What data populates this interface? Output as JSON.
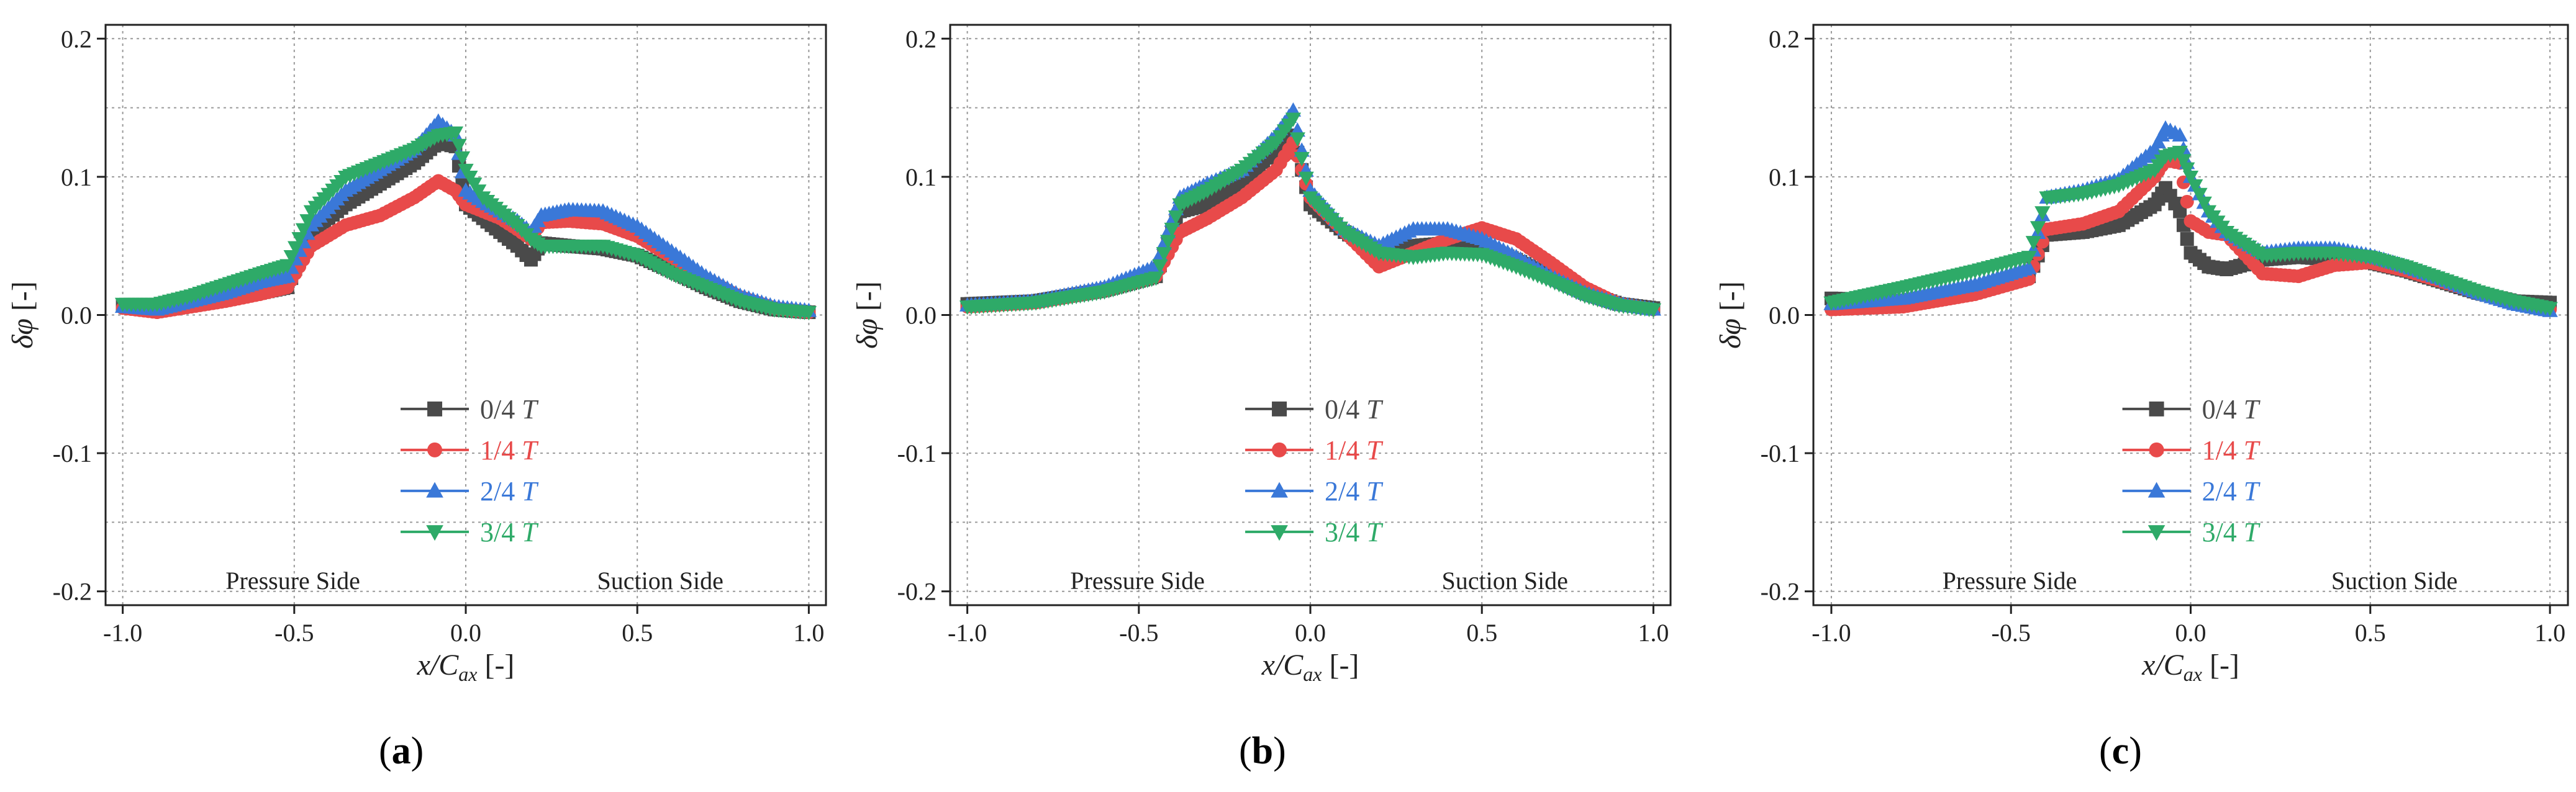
{
  "figure": {
    "panel_labels": [
      {
        "open": "(",
        "letter": "a",
        "close": ")"
      },
      {
        "open": "(",
        "letter": "b",
        "close": ")"
      },
      {
        "open": "(",
        "letter": "c",
        "close": ")"
      }
    ]
  },
  "chart_data": [
    {
      "type": "scatter",
      "panel": "a",
      "title": "",
      "xlabel": "x/C_ax [-]",
      "ylabel": "δφ [-]",
      "xlim": [
        -1.05,
        1.05
      ],
      "ylim": [
        -0.21,
        0.21
      ],
      "xticks": [
        "-1.0",
        "-0.5",
        "0.0",
        "0.5",
        "1.0"
      ],
      "yticks": [
        "-0.2",
        "-0.1",
        "0.0",
        "0.1",
        "0.2"
      ],
      "grid": true,
      "legend_position": "lower-center",
      "annotations": [
        "Pressure Side",
        "Suction Side"
      ],
      "colors": {
        "0/4 T": "#4a4a4a",
        "1/4 T": "#e84a4a",
        "2/4 T": "#3a78d8",
        "3/4 T": "#2eaa68"
      },
      "series": [
        {
          "name": "0/4 T",
          "label": "0/4",
          "label_italic": "T",
          "marker": "square",
          "x": [
            -1.0,
            -0.9,
            -0.8,
            -0.7,
            -0.6,
            -0.52,
            -0.45,
            -0.35,
            -0.25,
            -0.15,
            -0.08,
            -0.03,
            0.0,
            0.05,
            0.1,
            0.15,
            0.19,
            0.22,
            0.3,
            0.4,
            0.5,
            0.6,
            0.7,
            0.8,
            0.9,
            1.0
          ],
          "y": [
            0.007,
            0.004,
            0.008,
            0.012,
            0.016,
            0.02,
            0.06,
            0.08,
            0.095,
            0.11,
            0.125,
            0.122,
            0.08,
            0.07,
            0.06,
            0.05,
            0.04,
            0.052,
            0.05,
            0.048,
            0.043,
            0.032,
            0.02,
            0.01,
            0.004,
            0.002
          ]
        },
        {
          "name": "1/4 T",
          "label": "1/4",
          "label_italic": "T",
          "marker": "circle",
          "x": [
            -1.0,
            -0.9,
            -0.8,
            -0.7,
            -0.6,
            -0.52,
            -0.45,
            -0.35,
            -0.25,
            -0.15,
            -0.08,
            -0.03,
            0.0,
            0.05,
            0.1,
            0.15,
            0.19,
            0.22,
            0.3,
            0.4,
            0.5,
            0.6,
            0.7,
            0.8,
            0.9,
            1.0
          ],
          "y": [
            0.005,
            0.002,
            0.006,
            0.01,
            0.015,
            0.02,
            0.05,
            0.065,
            0.072,
            0.085,
            0.097,
            0.09,
            0.08,
            0.075,
            0.07,
            0.062,
            0.055,
            0.067,
            0.068,
            0.066,
            0.057,
            0.042,
            0.026,
            0.013,
            0.005,
            0.002
          ]
        },
        {
          "name": "2/4 T",
          "label": "2/4",
          "label_italic": "T",
          "marker": "triangle-up",
          "x": [
            -1.0,
            -0.9,
            -0.8,
            -0.7,
            -0.6,
            -0.52,
            -0.45,
            -0.35,
            -0.25,
            -0.15,
            -0.08,
            -0.03,
            0.0,
            0.05,
            0.1,
            0.15,
            0.19,
            0.22,
            0.3,
            0.4,
            0.5,
            0.6,
            0.7,
            0.8,
            0.9,
            1.0
          ],
          "y": [
            0.006,
            0.004,
            0.01,
            0.016,
            0.024,
            0.028,
            0.065,
            0.09,
            0.105,
            0.12,
            0.14,
            0.13,
            0.09,
            0.082,
            0.075,
            0.068,
            0.06,
            0.072,
            0.076,
            0.075,
            0.064,
            0.046,
            0.028,
            0.014,
            0.006,
            0.003
          ]
        },
        {
          "name": "3/4 T",
          "label": "3/4",
          "label_italic": "T",
          "marker": "triangle-down",
          "x": [
            -1.0,
            -0.9,
            -0.8,
            -0.7,
            -0.6,
            -0.52,
            -0.45,
            -0.35,
            -0.25,
            -0.15,
            -0.08,
            -0.03,
            0.0,
            0.05,
            0.1,
            0.15,
            0.19,
            0.22,
            0.3,
            0.4,
            0.5,
            0.6,
            0.7,
            0.8,
            0.9,
            1.0
          ],
          "y": [
            0.008,
            0.008,
            0.014,
            0.022,
            0.03,
            0.036,
            0.075,
            0.1,
            0.11,
            0.12,
            0.13,
            0.132,
            0.105,
            0.085,
            0.075,
            0.065,
            0.055,
            0.05,
            0.05,
            0.05,
            0.043,
            0.03,
            0.02,
            0.01,
            0.004,
            0.002
          ]
        }
      ]
    },
    {
      "type": "scatter",
      "panel": "b",
      "title": "",
      "xlabel": "x/C_ax [-]",
      "ylabel": "δφ [-]",
      "xlim": [
        -1.05,
        1.05
      ],
      "ylim": [
        -0.21,
        0.21
      ],
      "xticks": [
        "-1.0",
        "-0.5",
        "0.0",
        "0.5",
        "1.0"
      ],
      "yticks": [
        "-0.2",
        "-0.1",
        "0.0",
        "0.1",
        "0.2"
      ],
      "grid": true,
      "legend_position": "lower-center",
      "annotations": [
        "Pressure Side",
        "Suction Side"
      ],
      "colors": {
        "0/4 T": "#4a4a4a",
        "1/4 T": "#e84a4a",
        "2/4 T": "#3a78d8",
        "3/4 T": "#2eaa68"
      },
      "series": [
        {
          "name": "0/4 T",
          "label": "0/4",
          "label_italic": "T",
          "marker": "square",
          "x": [
            -1.0,
            -0.8,
            -0.6,
            -0.45,
            -0.38,
            -0.3,
            -0.2,
            -0.1,
            -0.05,
            0.0,
            0.1,
            0.2,
            0.3,
            0.4,
            0.5,
            0.6,
            0.7,
            0.8,
            0.9,
            1.0
          ],
          "y": [
            0.008,
            0.01,
            0.018,
            0.028,
            0.075,
            0.08,
            0.095,
            0.12,
            0.13,
            0.08,
            0.06,
            0.045,
            0.05,
            0.052,
            0.05,
            0.04,
            0.028,
            0.016,
            0.008,
            0.005
          ]
        },
        {
          "name": "1/4 T",
          "label": "1/4",
          "label_italic": "T",
          "marker": "circle",
          "x": [
            -1.0,
            -0.8,
            -0.6,
            -0.45,
            -0.38,
            -0.3,
            -0.2,
            -0.1,
            -0.05,
            0.0,
            0.1,
            0.2,
            0.3,
            0.4,
            0.5,
            0.6,
            0.7,
            0.8,
            0.9,
            1.0
          ],
          "y": [
            0.006,
            0.009,
            0.018,
            0.028,
            0.06,
            0.07,
            0.085,
            0.105,
            0.125,
            0.085,
            0.06,
            0.035,
            0.045,
            0.055,
            0.063,
            0.055,
            0.038,
            0.02,
            0.008,
            0.004
          ]
        },
        {
          "name": "2/4 T",
          "label": "2/4",
          "label_italic": "T",
          "marker": "triangle-up",
          "x": [
            -1.0,
            -0.8,
            -0.6,
            -0.45,
            -0.38,
            -0.3,
            -0.2,
            -0.1,
            -0.05,
            0.0,
            0.1,
            0.2,
            0.3,
            0.4,
            0.5,
            0.6,
            0.7,
            0.8,
            0.9,
            1.0
          ],
          "y": [
            0.007,
            0.01,
            0.02,
            0.035,
            0.085,
            0.095,
            0.105,
            0.13,
            0.148,
            0.09,
            0.062,
            0.05,
            0.062,
            0.062,
            0.055,
            0.042,
            0.028,
            0.016,
            0.008,
            0.004
          ]
        },
        {
          "name": "3/4 T",
          "label": "3/4",
          "label_italic": "T",
          "marker": "triangle-down",
          "x": [
            -1.0,
            -0.8,
            -0.6,
            -0.45,
            -0.38,
            -0.3,
            -0.2,
            -0.1,
            -0.05,
            0.0,
            0.1,
            0.2,
            0.3,
            0.4,
            0.5,
            0.6,
            0.7,
            0.8,
            0.9,
            1.0
          ],
          "y": [
            0.006,
            0.009,
            0.017,
            0.027,
            0.08,
            0.09,
            0.105,
            0.125,
            0.142,
            0.085,
            0.06,
            0.045,
            0.042,
            0.045,
            0.044,
            0.035,
            0.025,
            0.014,
            0.007,
            0.004
          ]
        }
      ]
    },
    {
      "type": "scatter",
      "panel": "c",
      "title": "",
      "xlabel": "x/C_ax [-]",
      "ylabel": "δφ [-]",
      "xlim": [
        -1.05,
        1.05
      ],
      "ylim": [
        -0.21,
        0.21
      ],
      "xticks": [
        "-1.0",
        "-0.5",
        "0.0",
        "0.5",
        "1.0"
      ],
      "yticks": [
        "-0.2",
        "-0.1",
        "0.0",
        "0.1",
        "0.2"
      ],
      "grid": true,
      "legend_position": "lower-center",
      "annotations": [
        "Pressure Side",
        "Suction Side"
      ],
      "colors": {
        "0/4 T": "#4a4a4a",
        "1/4 T": "#e84a4a",
        "2/4 T": "#3a78d8",
        "3/4 T": "#2eaa68"
      },
      "series": [
        {
          "name": "0/4 T",
          "label": "0/4",
          "label_italic": "T",
          "marker": "square",
          "x": [
            -1.0,
            -0.8,
            -0.6,
            -0.45,
            -0.4,
            -0.3,
            -0.2,
            -0.1,
            -0.07,
            -0.03,
            0.0,
            0.05,
            0.1,
            0.2,
            0.3,
            0.4,
            0.5,
            0.6,
            0.7,
            0.8,
            0.9,
            1.0
          ],
          "y": [
            0.012,
            0.01,
            0.018,
            0.028,
            0.058,
            0.06,
            0.065,
            0.08,
            0.092,
            0.075,
            0.045,
            0.035,
            0.033,
            0.04,
            0.042,
            0.04,
            0.038,
            0.032,
            0.024,
            0.016,
            0.01,
            0.009
          ]
        },
        {
          "name": "1/4 T",
          "label": "1/4",
          "label_italic": "T",
          "marker": "circle",
          "x": [
            -1.0,
            -0.8,
            -0.6,
            -0.45,
            -0.4,
            -0.3,
            -0.2,
            -0.1,
            -0.07,
            -0.03,
            0.0,
            0.05,
            0.1,
            0.2,
            0.3,
            0.4,
            0.5,
            0.6,
            0.7,
            0.8,
            0.9,
            1.0
          ],
          "y": [
            0.004,
            0.006,
            0.015,
            0.026,
            0.062,
            0.066,
            0.075,
            0.1,
            0.112,
            0.11,
            0.068,
            0.06,
            0.058,
            0.03,
            0.028,
            0.036,
            0.038,
            0.032,
            0.024,
            0.016,
            0.008,
            0.004
          ]
        },
        {
          "name": "2/4 T",
          "label": "2/4",
          "label_italic": "T",
          "marker": "triangle-up",
          "x": [
            -1.0,
            -0.8,
            -0.6,
            -0.45,
            -0.4,
            -0.3,
            -0.2,
            -0.1,
            -0.07,
            -0.03,
            0.0,
            0.05,
            0.1,
            0.2,
            0.3,
            0.4,
            0.5,
            0.6,
            0.7,
            0.8,
            0.9,
            1.0
          ],
          "y": [
            0.008,
            0.012,
            0.022,
            0.034,
            0.085,
            0.09,
            0.098,
            0.12,
            0.135,
            0.13,
            0.1,
            0.075,
            0.06,
            0.045,
            0.048,
            0.048,
            0.043,
            0.035,
            0.026,
            0.016,
            0.008,
            0.003
          ]
        },
        {
          "name": "3/4 T",
          "label": "3/4",
          "label_italic": "T",
          "marker": "triangle-down",
          "x": [
            -1.0,
            -0.8,
            -0.6,
            -0.45,
            -0.4,
            -0.3,
            -0.2,
            -0.1,
            -0.07,
            -0.03,
            0.0,
            0.05,
            0.1,
            0.2,
            0.3,
            0.4,
            0.5,
            0.6,
            0.7,
            0.8,
            0.9,
            1.0
          ],
          "y": [
            0.009,
            0.02,
            0.032,
            0.042,
            0.085,
            0.088,
            0.094,
            0.105,
            0.115,
            0.118,
            0.1,
            0.075,
            0.06,
            0.043,
            0.045,
            0.045,
            0.042,
            0.035,
            0.026,
            0.017,
            0.01,
            0.005
          ]
        }
      ]
    }
  ]
}
